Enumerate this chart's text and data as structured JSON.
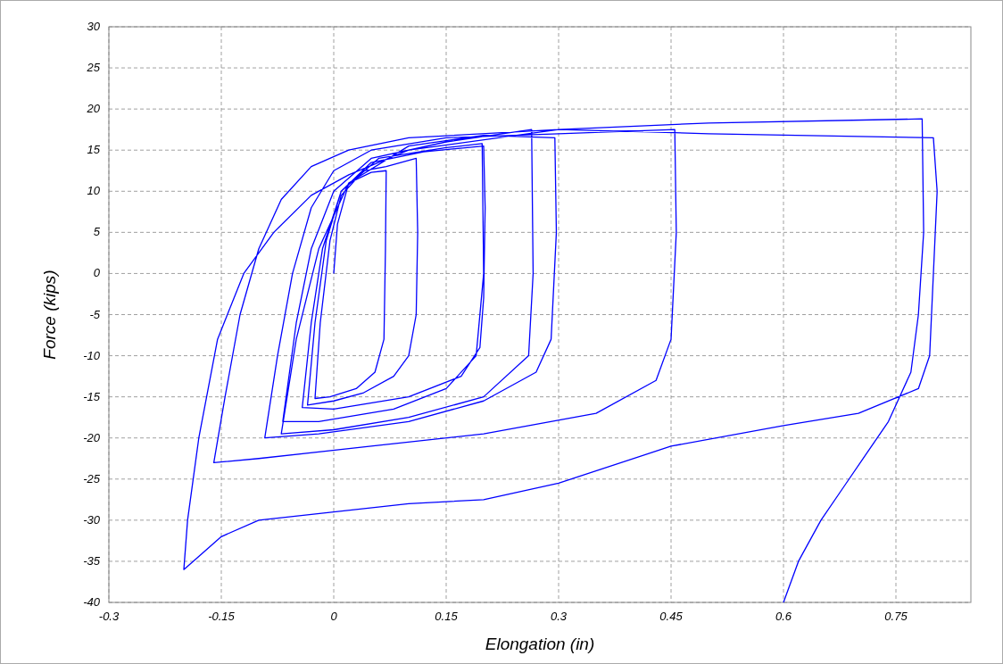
{
  "chart_data": {
    "type": "line",
    "xlabel": "Elongation (in)",
    "ylabel": "Force (kips)",
    "xlim": [
      -0.3,
      0.85
    ],
    "ylim": [
      -40,
      30
    ],
    "xticks": [
      -0.3,
      -0.15,
      0,
      0.15,
      0.3,
      0.45,
      0.6,
      0.75
    ],
    "yticks": [
      -40,
      -35,
      -30,
      -25,
      -20,
      -15,
      -10,
      -5,
      0,
      5,
      10,
      15,
      20,
      25,
      30
    ],
    "grid": true,
    "line_style": "solid",
    "series": [
      {
        "color": "#0000ff",
        "x": [
          0,
          0.005,
          0.02,
          0.05,
          0.07,
          0.069,
          0.067,
          0.055,
          0.03,
          -0.005,
          -0.025,
          -0.018,
          -0.005,
          0.01,
          0.04,
          0.07,
          0.11,
          0.112,
          0.11,
          0.1,
          0.08,
          0.04,
          0,
          -0.035,
          -0.025,
          -0.01,
          0.01,
          0.05,
          0.12,
          0.2,
          0.202,
          0.2,
          0.195,
          0.17,
          0.1,
          0,
          -0.042,
          -0.03,
          -0.015,
          0.01,
          0.06,
          0.15,
          0.198,
          0.2,
          0.19,
          0.15,
          0.08,
          -0.02,
          -0.068,
          -0.05,
          -0.03,
          0,
          0.05,
          0.15,
          0.264,
          0.266,
          0.26,
          0.2,
          0.1,
          0,
          -0.07,
          -0.05,
          -0.02,
          0.02,
          0.1,
          0.2,
          0.295,
          0.297,
          0.29,
          0.27,
          0.2,
          0.1,
          -0.02,
          -0.092,
          -0.075,
          -0.055,
          -0.03,
          0,
          0.05,
          0.15,
          0.3,
          0.455,
          0.457,
          0.45,
          0.43,
          0.35,
          0.2,
          0.05,
          -0.1,
          -0.16,
          -0.145,
          -0.125,
          -0.1,
          -0.07,
          -0.03,
          0.02,
          0.1,
          0.3,
          0.5,
          0.8,
          0.805,
          0.8,
          0.795,
          0.78,
          0.7,
          0.6,
          0.45,
          0.3,
          0.2,
          0.1,
          0,
          -0.1,
          -0.15,
          -0.2,
          -0.195,
          -0.18,
          -0.155,
          -0.12,
          -0.08,
          -0.03,
          0.02,
          0.1,
          0.3,
          0.5,
          0.785,
          0.787,
          0.78,
          0.77,
          0.74,
          0.71,
          0.68,
          0.65,
          0.62,
          0.6
        ],
        "values": [
          0,
          6,
          11,
          12.3,
          12.5,
          3,
          -8,
          -12,
          -14,
          -15,
          -15.2,
          -6,
          4,
          9.5,
          12.5,
          13,
          14,
          5,
          -5,
          -10,
          -12.5,
          -14.5,
          -15.5,
          -16,
          -6,
          4,
          10,
          13.5,
          14.8,
          15.5,
          8,
          -3,
          -9,
          -12.5,
          -15,
          -16.5,
          -16.3,
          -6,
          3,
          10,
          14,
          15.3,
          15.8,
          0,
          -10,
          -14,
          -16.5,
          -18,
          -18,
          -6,
          3,
          10,
          14,
          16,
          17.5,
          0,
          -10,
          -15,
          -17.5,
          -19,
          -19.5,
          -8,
          3,
          11,
          15.5,
          16.8,
          16.5,
          5,
          -8,
          -12,
          -15.5,
          -18,
          -19.5,
          -20,
          -10,
          0,
          8,
          12.5,
          15,
          16.5,
          17,
          17.5,
          5,
          -8,
          -13,
          -17,
          -19.5,
          -21,
          -22.5,
          -23,
          -15,
          -5,
          3,
          9,
          13,
          15,
          16.5,
          17.5,
          17,
          16.5,
          10,
          0,
          -10,
          -14,
          -17,
          -18.5,
          -21,
          -25.5,
          -27.5,
          -28,
          -29,
          -30,
          -32,
          -36,
          -30,
          -20,
          -8,
          0,
          5,
          9.5,
          12,
          15,
          17.5,
          18.3,
          18.8,
          5,
          -5,
          -12,
          -18,
          -22,
          -26,
          -30,
          -35,
          -40
        ]
      }
    ]
  }
}
